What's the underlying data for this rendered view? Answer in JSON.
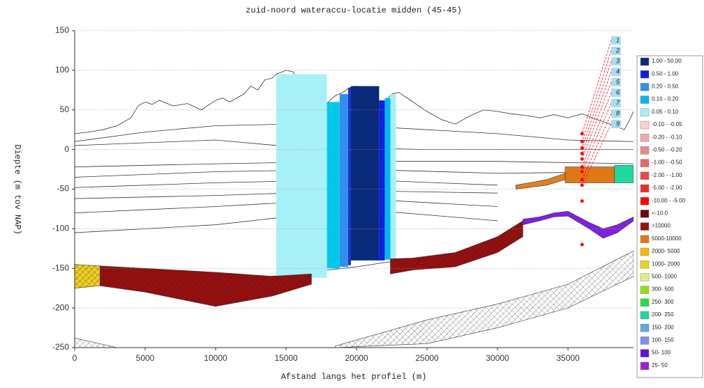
{
  "chart_data": {
    "type": "profile",
    "title": "zuid-noord wateraccu-locatie midden (45-45)",
    "xlabel": "Afstand langs het profiel (m)",
    "ylabel": "Diepte (m tov NAP)",
    "xlim": [
      0,
      39650
    ],
    "ylim": [
      -250,
      150
    ],
    "xticks": [
      0,
      5000,
      10000,
      15000,
      20000,
      25000,
      30000,
      35000
    ],
    "yticks": [
      -250,
      -200,
      -150,
      -100,
      -50,
      0,
      50,
      100,
      150
    ],
    "grid": true,
    "series": [
      {
        "color": "#333333",
        "x": [
          0,
          1000,
          2000,
          3000,
          4000,
          4500,
          5000,
          5500,
          6000,
          7000,
          8000,
          9000,
          10000,
          10500,
          11000,
          12000,
          12500,
          13000,
          13500,
          14000,
          14300,
          14600,
          15000,
          15500,
          16000,
          16500,
          17000,
          17500,
          18000,
          18500,
          19000,
          19500,
          20000,
          21000,
          21500,
          22000,
          22500,
          23000,
          24000,
          25000,
          26000,
          27000,
          28000,
          29000,
          30000,
          31000,
          32000,
          33000,
          34000,
          35000,
          36000,
          37000,
          38000,
          39000,
          39300,
          39650
        ],
        "values": [
          20,
          22,
          25,
          30,
          40,
          55,
          60,
          57,
          62,
          55,
          58,
          50,
          62,
          65,
          60,
          70,
          80,
          75,
          88,
          90,
          95,
          97,
          100,
          98,
          80,
          70,
          60,
          50,
          60,
          68,
          72,
          78,
          80,
          70,
          62,
          60,
          70,
          72,
          60,
          48,
          38,
          32,
          42,
          50,
          48,
          45,
          43,
          40,
          44,
          40,
          45,
          38,
          32,
          25,
          35,
          48
        ]
      },
      {
        "color": "#333333",
        "x": [
          0,
          5000,
          10000,
          15000,
          20000,
          25000,
          30000,
          35000,
          39650
        ],
        "values": [
          10,
          22,
          30,
          32,
          30,
          25,
          20,
          12,
          10
        ]
      },
      {
        "color": "#333333",
        "x": [
          0,
          10000,
          15000,
          20000,
          25000,
          30000,
          35000,
          39650
        ],
        "values": [
          5,
          12,
          4,
          2,
          0,
          0,
          0,
          0
        ]
      },
      {
        "color": "#333333",
        "x": [
          0,
          10000,
          20000,
          30000,
          39650
        ],
        "values": [
          -22,
          -18,
          -15,
          -15,
          -18
        ]
      },
      {
        "color": "#333333",
        "x": [
          0,
          10000,
          20000,
          30000,
          39650
        ],
        "values": [
          -35,
          -28,
          -25,
          -30,
          -28
        ]
      },
      {
        "color": "#333333",
        "x": [
          0,
          10000,
          20000,
          30000
        ],
        "values": [
          -48,
          -42,
          -38,
          -45
        ]
      },
      {
        "color": "#333333",
        "x": [
          0,
          10000,
          20000,
          30000
        ],
        "values": [
          -62,
          -58,
          -52,
          -55
        ]
      },
      {
        "color": "#333333",
        "x": [
          0,
          10000,
          20000,
          30000
        ],
        "values": [
          -80,
          -72,
          -62,
          -72
        ]
      },
      {
        "color": "#333333",
        "x": [
          0,
          10000,
          20000,
          30000
        ],
        "values": [
          -105,
          -95,
          -75,
          -90
        ]
      },
      {
        "color": "#333333",
        "x": [
          0,
          14000,
          20000,
          23000,
          26000
        ],
        "values": [
          -160,
          -160,
          -148,
          -140,
          -135
        ]
      }
    ],
    "bands": [
      {
        "x0": 14300,
        "x1": 17900,
        "top": 95,
        "bottom": -162,
        "color": "#a8f0f8"
      },
      {
        "x0": 17900,
        "x1": 18800,
        "top": 60,
        "bottom": -150,
        "color": "#00c8e8"
      },
      {
        "x0": 18800,
        "x1": 19400,
        "top": 70,
        "bottom": -148,
        "color": "#3090f0"
      },
      {
        "x0": 19400,
        "x1": 19600,
        "top": 78,
        "bottom": -146,
        "color": "#2030d0"
      },
      {
        "x0": 19600,
        "x1": 21600,
        "top": 80,
        "bottom": -140,
        "color": "#0a2a7a"
      },
      {
        "x0": 21600,
        "x1": 22000,
        "top": 62,
        "bottom": -140,
        "color": "#1020e0"
      },
      {
        "x0": 22000,
        "x1": 22400,
        "top": 65,
        "bottom": -139,
        "color": "#00b8f0"
      },
      {
        "x0": 22400,
        "x1": 22800,
        "top": 70,
        "bottom": -138,
        "color": "#a8f0f8"
      }
    ],
    "areas": [
      {
        "color": "#f0d020",
        "hatch": true,
        "x": [
          0,
          1800
        ],
        "upper": [
          -145,
          -147
        ],
        "lower": [
          -175,
          -172
        ]
      },
      {
        "color": "#9a0e0e",
        "hatch": true,
        "x": [
          1800,
          5000,
          10000,
          14000,
          16800
        ],
        "upper": [
          -147,
          -150,
          -155,
          -160,
          -157
        ],
        "lower": [
          -172,
          -180,
          -198,
          -185,
          -170
        ]
      },
      {
        "color": "#9a0e0e",
        "hatch": true,
        "x": [
          22400,
          24000,
          27000,
          30000,
          31800
        ],
        "upper": [
          -138,
          -137,
          -130,
          -110,
          -90
        ],
        "lower": [
          -157,
          -152,
          -148,
          -130,
          -110
        ]
      },
      {
        "color": "#ffffff",
        "hatch": true,
        "x": [
          18500,
          25000,
          30000,
          35000,
          39650
        ],
        "upper": [
          -248,
          -215,
          -195,
          -170,
          -128
        ],
        "lower": [
          -250,
          -245,
          -225,
          -200,
          -160
        ]
      },
      {
        "color": "#ffffff",
        "hatch": true,
        "x": [
          0,
          3000
        ],
        "upper": [
          -238,
          -250
        ],
        "lower": [
          -250,
          -250
        ]
      },
      {
        "color": "#8020e0",
        "hatch": false,
        "x": [
          31800,
          33000,
          34000,
          35000,
          36500,
          37500,
          38500,
          39650
        ],
        "upper": [
          -88,
          -85,
          -80,
          -78,
          -92,
          -100,
          -95,
          -85
        ],
        "lower": [
          -95,
          -90,
          -85,
          -84,
          -100,
          -112,
          -105,
          -90
        ]
      },
      {
        "color": "#e08020",
        "hatch": false,
        "x": [
          31300,
          33500,
          34800
        ],
        "upper": [
          -45,
          -38,
          -30
        ],
        "lower": [
          -50,
          -45,
          -38
        ]
      },
      {
        "color": "#e07818",
        "hatch": false,
        "x": [
          34800,
          38300
        ],
        "upper": [
          -22,
          -22
        ],
        "lower": [
          -42,
          -42
        ]
      },
      {
        "color": "#20d8a0",
        "hatch": false,
        "x": [
          38300,
          39650
        ],
        "upper": [
          -20,
          -20
        ],
        "lower": [
          -42,
          -42
        ]
      }
    ],
    "well_labels": [
      "1",
      "2",
      "3",
      "4",
      "5",
      "6",
      "7",
      "8",
      "9"
    ],
    "wells": {
      "color": "#ff0000",
      "x": [
        36000,
        36000,
        36000,
        36000,
        36000,
        36000,
        36000,
        36000,
        36000,
        36000,
        36000
      ],
      "values": [
        20,
        10,
        2,
        -5,
        -12,
        -22,
        -28,
        -38,
        -45,
        -65,
        -120
      ]
    },
    "legend": [
      {
        "label": "1.00 - 50.00",
        "color": "#0a2a7a"
      },
      {
        "label": "0.50 - 1.00",
        "color": "#1020e0"
      },
      {
        "label": "0.20 - 0.50",
        "color": "#3090f0"
      },
      {
        "label": "0.10 - 0.20",
        "color": "#00b8f0"
      },
      {
        "label": "0.05 - 0.10",
        "color": "#a8f0f8"
      },
      {
        "label": "-0.10 - -0.05",
        "color": "#f8d0d0"
      },
      {
        "label": "-0.20 - -0.10",
        "color": "#f0a8a8"
      },
      {
        "label": "-0.50 - -0.20",
        "color": "#e88888"
      },
      {
        "label": "-1.00 - -0.50",
        "color": "#e86868"
      },
      {
        "label": "-2.00 - -1.00",
        "color": "#e84848"
      },
      {
        "label": "-5.00 - -2.00",
        "color": "#f02828"
      },
      {
        "label": "-10.00 - -5.00",
        "color": "#ff0000"
      },
      {
        "label": "<-10.0",
        "color": "#6a0808"
      },
      {
        "label": ">10000",
        "color": "#9a0e0e"
      },
      {
        "label": "5000-10000",
        "color": "#e07818"
      },
      {
        "label": "2000- 5000",
        "color": "#f8b800"
      },
      {
        "label": "1000- 2000",
        "color": "#f0d020"
      },
      {
        "label": "500- 1000",
        "color": "#e0f080"
      },
      {
        "label": "300- 500",
        "color": "#90e010"
      },
      {
        "label": "250- 300",
        "color": "#20e040"
      },
      {
        "label": "200- 250",
        "color": "#20d8a0"
      },
      {
        "label": "150- 200",
        "color": "#60a8e0"
      },
      {
        "label": "100- 150",
        "color": "#7890f0"
      },
      {
        "label": "50- 100",
        "color": "#6010e0"
      },
      {
        "label": "25- 50",
        "color": "#a020d0"
      }
    ]
  }
}
